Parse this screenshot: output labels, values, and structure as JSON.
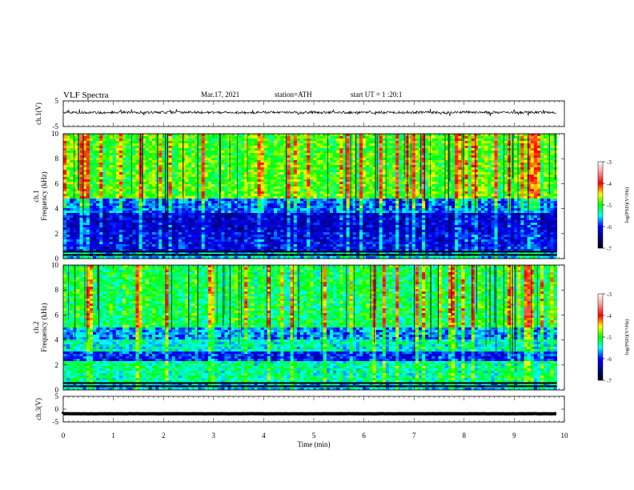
{
  "header": {
    "title": "VLF  Spectra",
    "date": "Mar.17, 2021",
    "station": "station=ATH",
    "start": "start  UT  =    1  :20:1"
  },
  "chart_data": [
    {
      "type": "line",
      "name": "ch1-waveform",
      "ylabel": "ch.1(V)",
      "ylim": [
        -5,
        5
      ],
      "yticks": [
        5,
        -5
      ],
      "xlim": [
        0,
        10
      ],
      "trace_level": 0.5,
      "trace_end": 9.85
    },
    {
      "type": "heatmap",
      "name": "ch1-spectrogram",
      "ylabel": "ch.1\nFrequency (kHz)",
      "ylim": [
        0,
        10
      ],
      "yticks": [
        0,
        2,
        4,
        6,
        8,
        10
      ],
      "xlim": [
        0,
        10
      ],
      "data_end": 9.85,
      "bands_kHz": [
        {
          "from": 0,
          "to": 0.6,
          "logpsd": -5.6
        },
        {
          "from": 0.6,
          "to": 2.2,
          "logpsd": -6.1
        },
        {
          "from": 2.2,
          "to": 3.6,
          "logpsd": -6.2
        },
        {
          "from": 3.6,
          "to": 4.8,
          "logpsd": -5.8
        },
        {
          "from": 4.8,
          "to": 10,
          "logpsd": -4.9
        }
      ],
      "colorbar": {
        "label": "log(PSD)(V²/Hz)",
        "range": [
          -7,
          -3
        ],
        "ticks": [
          -3,
          -4,
          -5,
          -6,
          -7
        ]
      }
    },
    {
      "type": "heatmap",
      "name": "ch2-spectrogram",
      "ylabel": "ch.2\nFrequency (kHz)",
      "ylim": [
        0,
        10
      ],
      "yticks": [
        0,
        2,
        4,
        6,
        8,
        10
      ],
      "xlim": [
        0,
        10
      ],
      "data_end": 9.85,
      "bands_kHz": [
        {
          "from": 0,
          "to": 0.6,
          "logpsd": -5.6
        },
        {
          "from": 0.6,
          "to": 2.4,
          "logpsd": -5.3
        },
        {
          "from": 2.4,
          "to": 3.0,
          "logpsd": -6.0
        },
        {
          "from": 3.0,
          "to": 4.0,
          "logpsd": -5.4
        },
        {
          "from": 4.0,
          "to": 5.0,
          "logpsd": -5.7
        },
        {
          "from": 5.0,
          "to": 10,
          "logpsd": -5.1
        }
      ],
      "colorbar": {
        "label": "log(PSD)(V²/Hz)",
        "range": [
          -7,
          -3
        ],
        "ticks": [
          -3,
          -4,
          -5,
          -6,
          -7
        ]
      }
    },
    {
      "type": "line",
      "name": "ch3-waveform",
      "ylabel": "ch.3(V)",
      "ylim": [
        -5,
        5
      ],
      "yticks": [
        5,
        0,
        -5
      ],
      "xlim": [
        0,
        10
      ],
      "trace_level": -1.8,
      "trace_end": 9.85
    }
  ],
  "xaxis": {
    "label": "Time  (min)",
    "ticks": [
      0,
      1,
      2,
      3,
      4,
      5,
      6,
      7,
      8,
      9,
      10
    ],
    "range": [
      0,
      10
    ]
  }
}
